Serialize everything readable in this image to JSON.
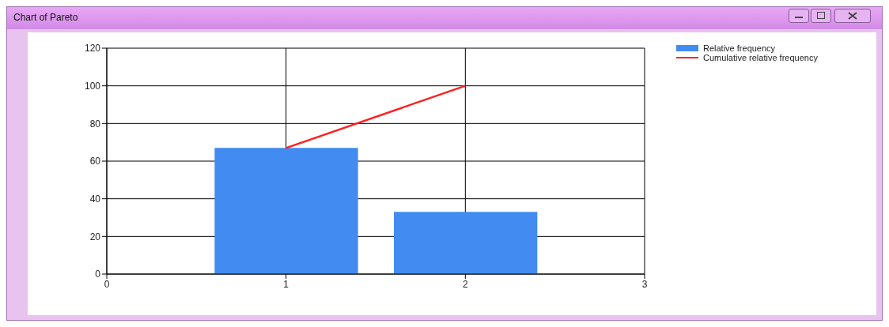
{
  "chart_data": {
    "type": "bar",
    "title": "Chart of Pareto",
    "x": [
      1,
      2
    ],
    "xlim": [
      0,
      3
    ],
    "xticks": [
      0,
      1,
      2,
      3
    ],
    "ylim": [
      0,
      120
    ],
    "yticks": [
      0,
      20,
      40,
      60,
      80,
      100,
      120
    ],
    "grid": true,
    "legend": "top right",
    "series": [
      {
        "name": "Relative frequency",
        "color": "#428bf0",
        "values": [
          67,
          33
        ]
      },
      {
        "name": "Cumulative relative frequency",
        "type": "line",
        "color": "#ff2020",
        "values": [
          67,
          100
        ]
      }
    ]
  }
}
